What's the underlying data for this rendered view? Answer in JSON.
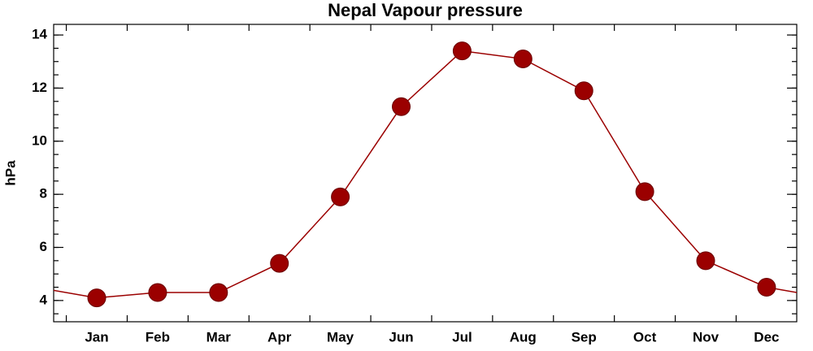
{
  "chart_data": {
    "type": "line",
    "title": "Nepal Vapour pressure",
    "y_label": "hPa",
    "categories": [
      "Jan",
      "Feb",
      "Mar",
      "Apr",
      "May",
      "Jun",
      "Jul",
      "Aug",
      "Sep",
      "Oct",
      "Nov",
      "Dec"
    ],
    "values": [
      4.1,
      4.3,
      4.3,
      5.4,
      7.9,
      11.3,
      13.4,
      13.1,
      11.9,
      8.1,
      5.5,
      4.5
    ],
    "color": "#9b0000",
    "ylim": [
      3.2,
      14.4
    ],
    "yticks": [
      4,
      6,
      8,
      10,
      12,
      14
    ]
  }
}
